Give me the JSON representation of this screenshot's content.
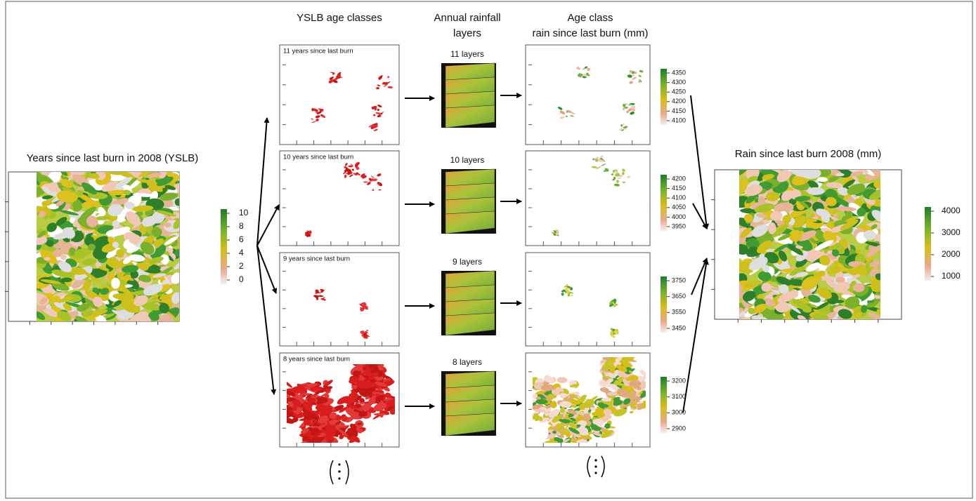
{
  "left_map": {
    "title": "Years since last burn in 2008 (YSLB)",
    "legend": [
      10,
      8,
      6,
      4,
      2,
      0
    ]
  },
  "age_classes": {
    "title": "YSLB age classes",
    "panels": [
      "11 years since last burn",
      "10 years since last burn",
      "9 years since last burn",
      "8 years since last burn"
    ]
  },
  "rainfall": {
    "title": [
      "Annual rainfall",
      "layers"
    ],
    "labels": [
      "11 layers",
      "10 layers",
      "9 layers",
      "8 layers"
    ]
  },
  "rain_classes": {
    "title": [
      "Age class",
      "rain since last burn (mm)"
    ],
    "legends": [
      [
        4350,
        4300,
        4250,
        4200,
        4150,
        4100
      ],
      [
        4200,
        4150,
        4100,
        4050,
        4000,
        3950
      ],
      [
        3750,
        3650,
        3550,
        3450
      ],
      [
        3200,
        3100,
        3000,
        2900
      ]
    ]
  },
  "right_map": {
    "title": "Rain since last burn 2008 (mm)",
    "legend": [
      4000,
      3000,
      2000,
      1000
    ]
  }
}
